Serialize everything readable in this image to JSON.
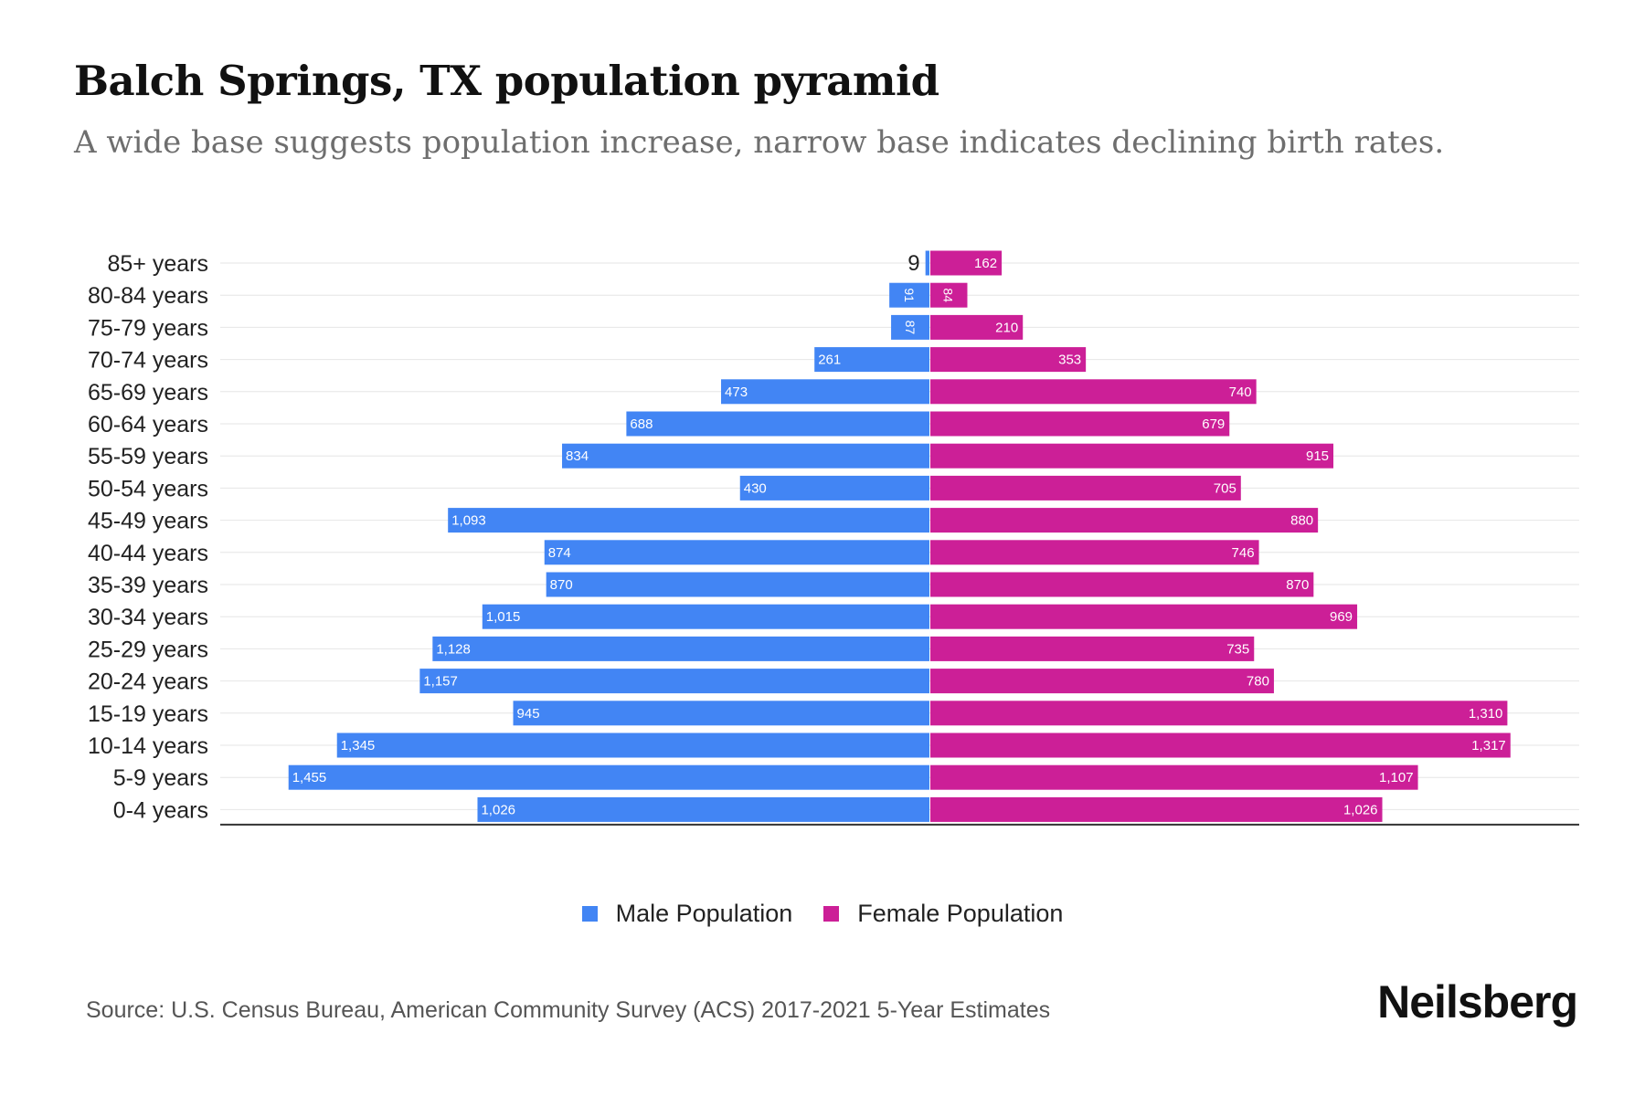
{
  "header": {
    "title": "Balch Springs, TX population pyramid",
    "subtitle": "A wide base suggests population increase, narrow base indicates declining birth rates."
  },
  "legend": {
    "male_label": "Male Population",
    "female_label": "Female Population"
  },
  "footer": {
    "source": "Source: U.S. Census Bureau, American Community Survey (ACS) 2017-2021 5-Year Estimates",
    "brand": "Neilsberg"
  },
  "colors": {
    "male": "#4285f4",
    "female": "#cc1f97",
    "grid": "#e6e6e6",
    "axis": "#333333"
  },
  "chart_data": {
    "type": "bar",
    "orientation": "horizontal-pyramid",
    "title": "Balch Springs, TX population pyramid",
    "categories": [
      "85+ years",
      "80-84 years",
      "75-79 years",
      "70-74 years",
      "65-69 years",
      "60-64 years",
      "55-59 years",
      "50-54 years",
      "45-49 years",
      "40-44 years",
      "35-39 years",
      "30-34 years",
      "25-29 years",
      "20-24 years",
      "15-19 years",
      "10-14 years",
      "5-9 years",
      "0-4 years"
    ],
    "series": [
      {
        "name": "Male Population",
        "values": [
          9,
          91,
          87,
          261,
          473,
          688,
          834,
          430,
          1093,
          874,
          870,
          1015,
          1128,
          1157,
          945,
          1345,
          1455,
          1026
        ]
      },
      {
        "name": "Female Population",
        "values": [
          162,
          84,
          210,
          353,
          740,
          679,
          915,
          705,
          880,
          746,
          870,
          969,
          735,
          780,
          1310,
          1317,
          1107,
          1026
        ]
      }
    ],
    "labels": {
      "male": [
        "9",
        "91",
        "87",
        "261",
        "473",
        "688",
        "834",
        "430",
        "1,093",
        "874",
        "870",
        "1,015",
        "1,128",
        "1,157",
        "945",
        "1,345",
        "1,455",
        "1,026"
      ],
      "female": [
        "162",
        "84",
        "210",
        "353",
        "740",
        "679",
        "915",
        "705",
        "880",
        "746",
        "870",
        "969",
        "735",
        "780",
        "1,310",
        "1,317",
        "1,107",
        "1,026"
      ]
    },
    "xlim": [
      -1610,
      1480
    ],
    "legend_position": "bottom-center",
    "grid": true
  }
}
